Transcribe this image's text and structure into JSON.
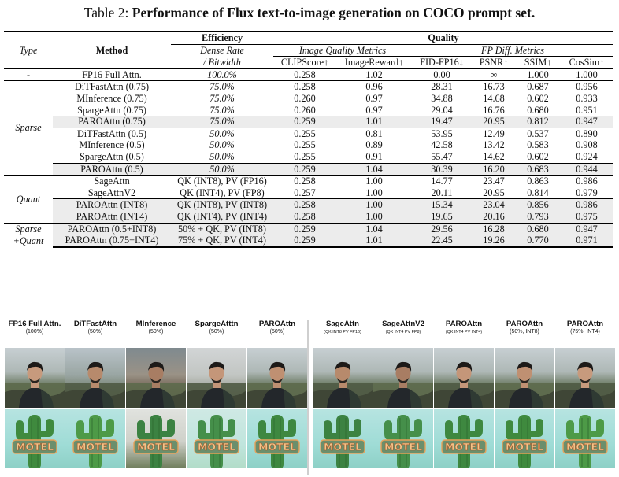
{
  "caption": {
    "prefix": "Table 2: ",
    "title": "Performance of Flux text-to-image generation on COCO prompt set."
  },
  "header": {
    "type": "Type",
    "method": "Method",
    "efficiency": "Efficiency",
    "quality": "Quality",
    "dense_rate_1": "Dense Rate",
    "dense_rate_2": "/ Bitwidth",
    "iqm": "Image Quality Metrics",
    "fpd": "FP Diff. Metrics",
    "metrics": [
      "CLIPScore↑",
      "ImageReward↑",
      "FID-FP16↓",
      "PSNR↑",
      "SSIM↑",
      "CosSim↑"
    ]
  },
  "groups": {
    "baseline": "-",
    "sparse": "Sparse",
    "quant": "Quant",
    "mixed_1": "Sparse",
    "mixed_2": "+Quant"
  },
  "rows": {
    "fp16": [
      "FP16 Full Attn.",
      "100.0%",
      "0.258",
      "1.02",
      "0.00",
      "∞",
      "1.000",
      "1.000"
    ],
    "s075": [
      [
        "DiTFastAttn (0.75)",
        "75.0%",
        "0.258",
        "0.96",
        "28.31",
        "16.73",
        "0.687",
        "0.956"
      ],
      [
        "MInference (0.75)",
        "75.0%",
        "0.260",
        "0.97",
        "34.88",
        "14.68",
        "0.602",
        "0.933"
      ],
      [
        "SpargeAttn (0.75)",
        "75.0%",
        "0.260",
        "0.97",
        "29.04",
        "16.76",
        "0.680",
        "0.951"
      ],
      [
        "PAROAttn (0.75)",
        "75.0%",
        "0.259",
        "1.01",
        "19.47",
        "20.95",
        "0.812",
        "0.947"
      ]
    ],
    "s05": [
      [
        "DiTFastAttn (0.5)",
        "50.0%",
        "0.255",
        "0.81",
        "53.95",
        "12.49",
        "0.537",
        "0.890"
      ],
      [
        "MInference (0.5)",
        "50.0%",
        "0.255",
        "0.89",
        "42.58",
        "13.42",
        "0.583",
        "0.908"
      ],
      [
        "SpargeAttn (0.5)",
        "50.0%",
        "0.255",
        "0.91",
        "55.47",
        "14.62",
        "0.602",
        "0.924"
      ]
    ],
    "paro05": [
      "PAROAttn (0.5)",
      "50.0%",
      "0.259",
      "1.04",
      "30.39",
      "16.20",
      "0.683",
      "0.944"
    ],
    "quant": [
      [
        "SageAttn",
        "QK (INT8), PV (FP16)",
        "0.258",
        "1.00",
        "14.77",
        "23.47",
        "0.863",
        "0.986"
      ],
      [
        "SageAttnV2",
        "QK (INT4), PV (FP8)",
        "0.257",
        "1.00",
        "20.11",
        "20.95",
        "0.814",
        "0.979"
      ]
    ],
    "paroquant": [
      [
        "PAROAttn (INT8)",
        "QK (INT8), PV (INT8)",
        "0.258",
        "1.00",
        "15.34",
        "23.04",
        "0.856",
        "0.986"
      ],
      [
        "PAROAttn (INT4)",
        "QK (INT4), PV (INT4)",
        "0.258",
        "1.00",
        "19.65",
        "20.16",
        "0.793",
        "0.975"
      ]
    ],
    "mixed": [
      [
        "PAROAttn (0.5+INT8)",
        "50% + QK, PV (INT8)",
        "0.259",
        "1.04",
        "29.56",
        "16.28",
        "0.680",
        "0.947"
      ],
      [
        "PAROAttn (0.75+INT4)",
        "75% + QK, PV (INT4)",
        "0.259",
        "1.01",
        "22.45",
        "19.26",
        "0.770",
        "0.971"
      ]
    ]
  },
  "images": {
    "left": [
      {
        "title": "FP16 Full Attn.",
        "sub": "(100%)"
      },
      {
        "title": "DiTFastAttn",
        "sub": "(50%)"
      },
      {
        "title": "MInference",
        "sub": "(50%)"
      },
      {
        "title": "SpargeAtttn",
        "sub": "(50%)"
      },
      {
        "title": "PAROAttn",
        "sub": "(50%)"
      }
    ],
    "right": [
      {
        "title": "SageAttn",
        "sub": "(QK INT8 PV FP16)"
      },
      {
        "title": "SageAttnV2",
        "sub": "(QK INT4 PV FP8)"
      },
      {
        "title": "PAROAttn",
        "sub": "(QK INT4 PV INT4)"
      },
      {
        "title": "PAROAttn",
        "sub": "(50%, INT8)"
      },
      {
        "title": "PAROAttn",
        "sub": "(75%, INT4)"
      }
    ],
    "sign_text": "MOTEL"
  }
}
